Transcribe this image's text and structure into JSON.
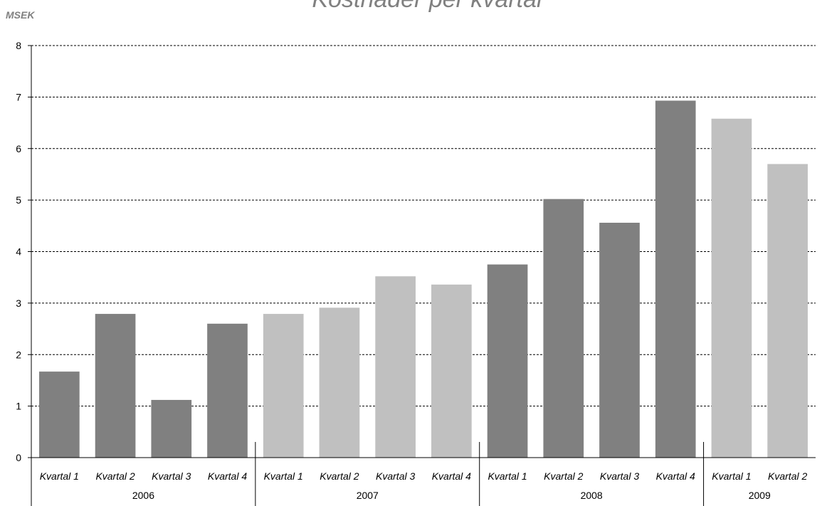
{
  "chart_data": {
    "type": "bar",
    "title": "Kostnader per kvartal",
    "ylabel": "MSEK",
    "xlabel": "",
    "ylim": [
      0,
      8
    ],
    "yticks": [
      0,
      1,
      2,
      3,
      4,
      5,
      6,
      7,
      8
    ],
    "grid": true,
    "legend": "none",
    "groups": [
      {
        "label": "2006",
        "categories": [
          "Kvartal 1",
          "Kvartal 2",
          "Kvartal 3",
          "Kvartal 4"
        ],
        "values": [
          1.67,
          2.79,
          1.12,
          2.6
        ],
        "color": "#808080"
      },
      {
        "label": "2007",
        "categories": [
          "Kvartal 1",
          "Kvartal 2",
          "Kvartal 3",
          "Kvartal 4"
        ],
        "values": [
          2.79,
          2.91,
          3.52,
          3.36
        ],
        "color": "#c0c0c0"
      },
      {
        "label": "2008",
        "categories": [
          "Kvartal 1",
          "Kvartal 2",
          "Kvartal 3",
          "Kvartal 4"
        ],
        "values": [
          3.75,
          5.02,
          4.56,
          6.93
        ],
        "color": "#808080"
      },
      {
        "label": "2009",
        "categories": [
          "Kvartal 1",
          "Kvartal 2"
        ],
        "values": [
          6.58,
          5.7
        ],
        "color": "#c0c0c0"
      }
    ]
  }
}
